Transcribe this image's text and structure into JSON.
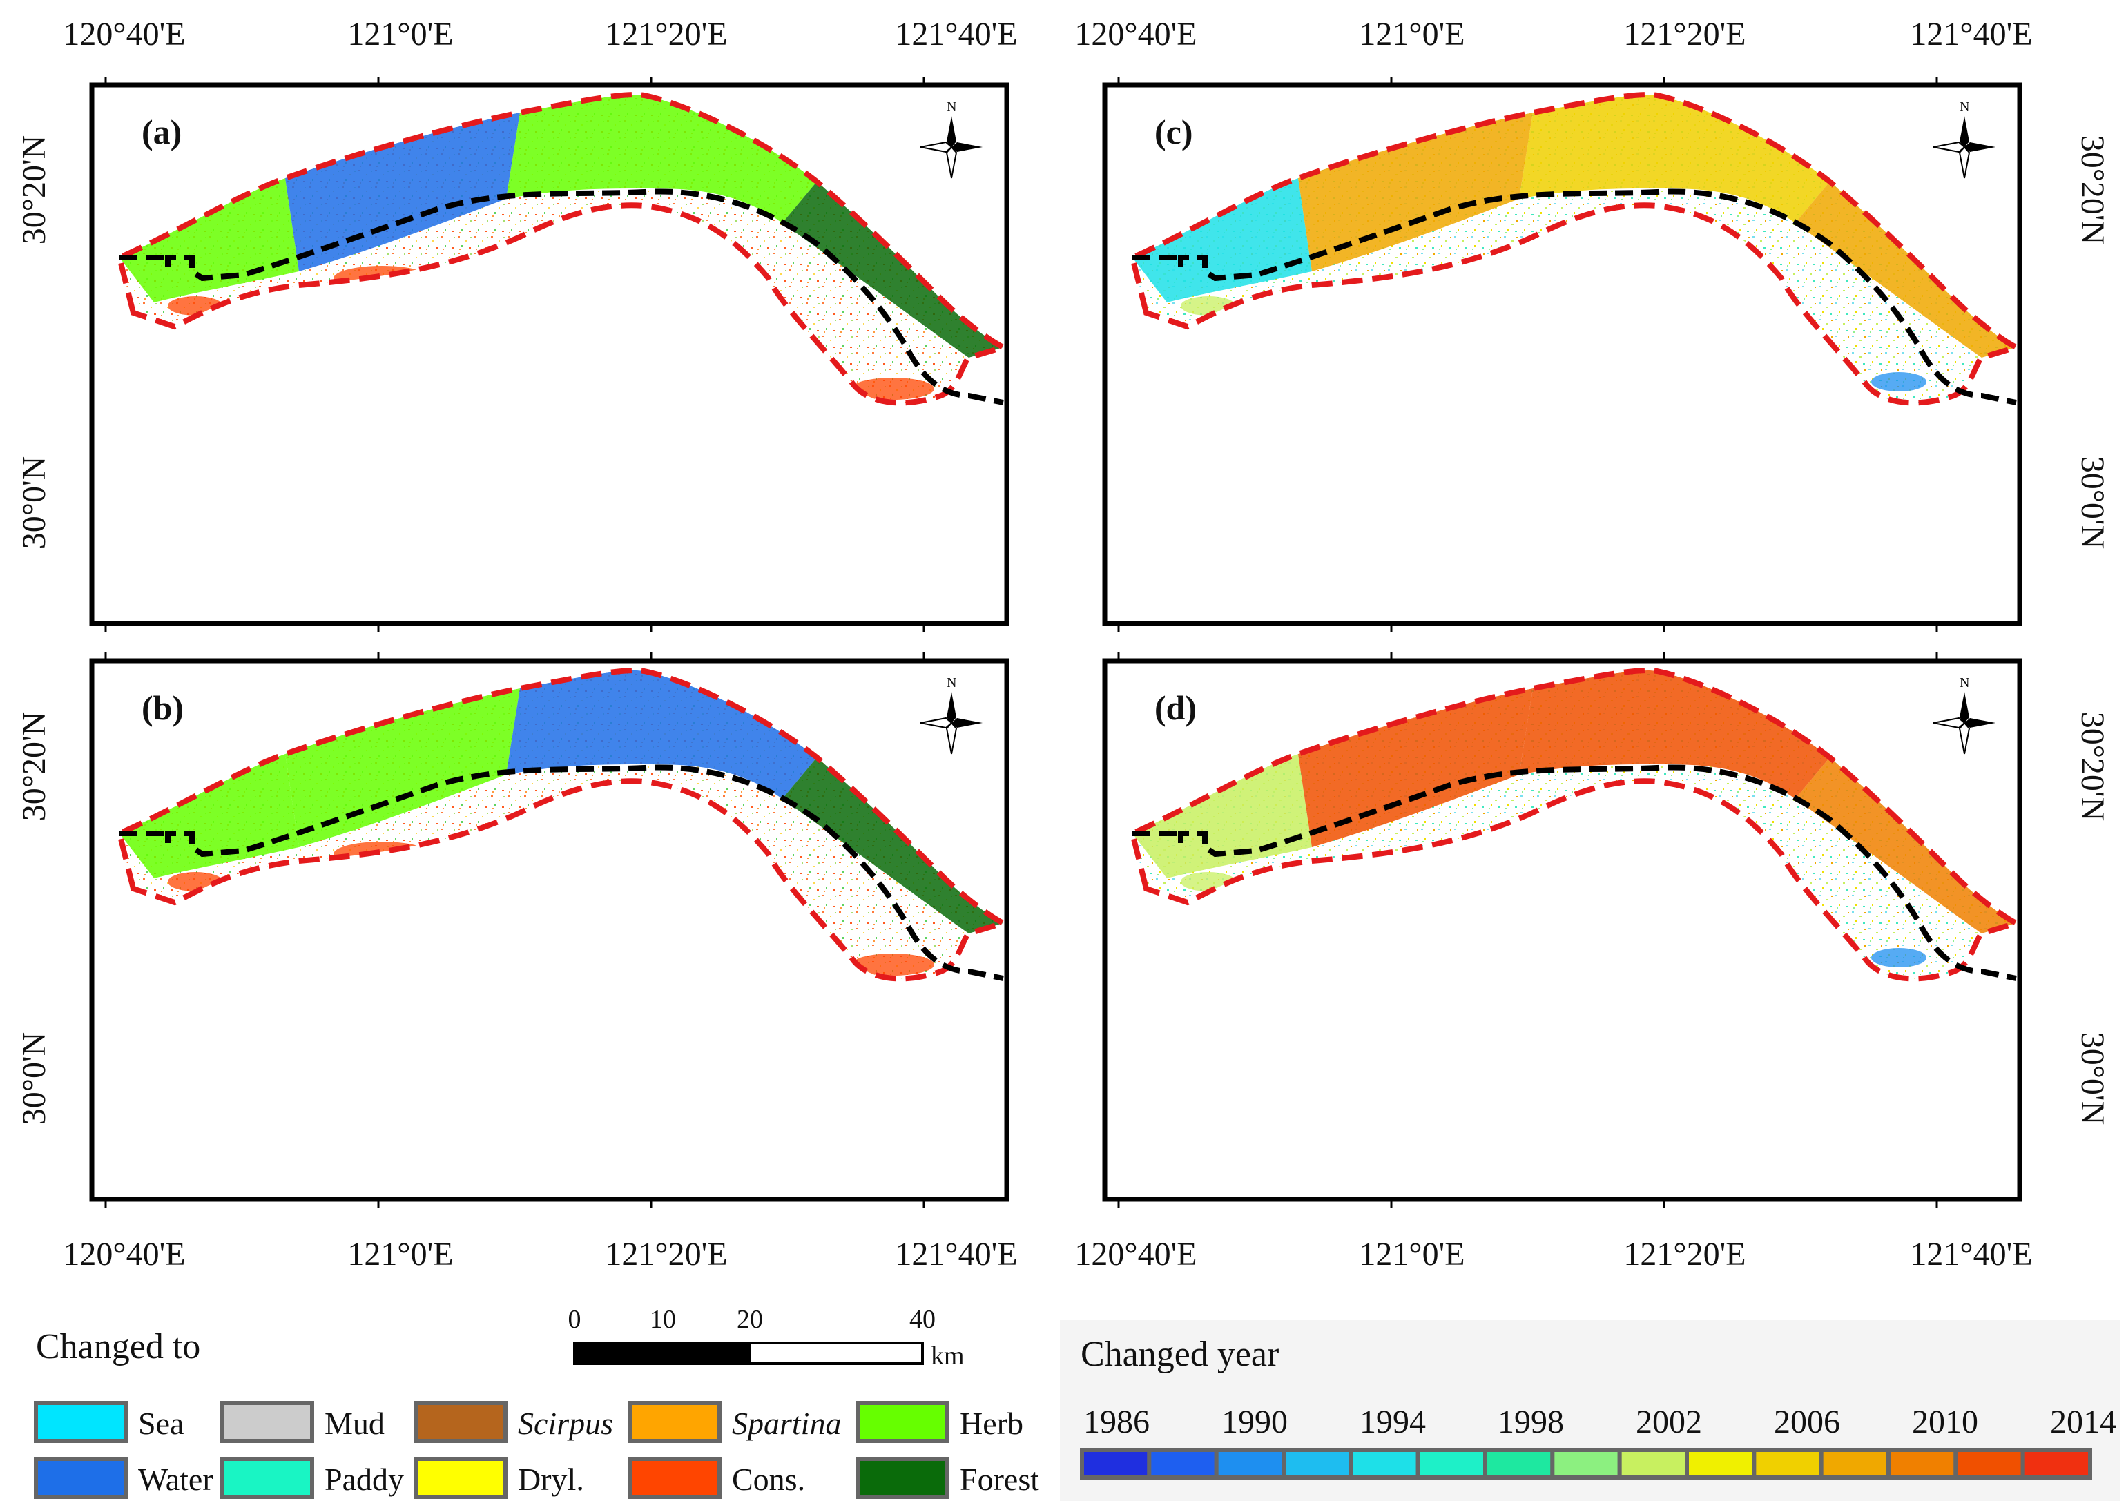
{
  "colors": {
    "boundary_red": "#e41a1c",
    "seawall_black": "#000000",
    "frame": "#000000"
  },
  "top_lon_labels": {
    "left": [
      "120°40'E",
      "121°0'E",
      "121°20'E",
      "121°40'E"
    ],
    "right": [
      "120°40'E",
      "121°0'E",
      "121°20'E",
      "121°40'E"
    ]
  },
  "bottom_lon_labels": {
    "left": [
      "120°40'E",
      "121°0'E",
      "121°20'E",
      "121°40'E"
    ],
    "right": [
      "120°40'E",
      "121°0'E",
      "121°20'E",
      "121°40'E"
    ]
  },
  "lat_labels": {
    "left_top": [
      "30°20'N",
      "30°0'N"
    ],
    "left_bottom": [
      "30°20'N",
      "30°0'N"
    ],
    "right_top": [
      "30°20'N",
      "30°0'N"
    ],
    "right_bottom": [
      "30°20'N",
      "30°0'N"
    ]
  },
  "panels": [
    {
      "id": "a",
      "label": "(a)",
      "mode": "landcover"
    },
    {
      "id": "b",
      "label": "(b)",
      "mode": "landcover"
    },
    {
      "id": "c",
      "label": "(c)",
      "mode": "year"
    },
    {
      "id": "d",
      "label": "(d)",
      "mode": "year"
    }
  ],
  "north_arrow_letter": "N",
  "scale_bar": {
    "ticks": [
      "0",
      "10",
      "20",
      "40"
    ],
    "unit": "km"
  },
  "legend_landcover": {
    "title": "Changed to",
    "items": [
      {
        "name": "Sea",
        "color": "#00e5ff",
        "italic": false
      },
      {
        "name": "Mud",
        "color": "#cccccc",
        "italic": false
      },
      {
        "name": "Scirpus",
        "color": "#b5651d",
        "italic": true
      },
      {
        "name": "Spartina",
        "color": "#ffa500",
        "italic": true
      },
      {
        "name": "Herb",
        "color": "#66ff00",
        "italic": false
      },
      {
        "name": "Water",
        "color": "#1e6fe8",
        "italic": false
      },
      {
        "name": "Paddy",
        "color": "#19f5c4",
        "italic": false
      },
      {
        "name": "Dryl.",
        "color": "#ffff00",
        "italic": false
      },
      {
        "name": "Cons.",
        "color": "#ff4500",
        "italic": false
      },
      {
        "name": "Forest",
        "color": "#0a6b0a",
        "italic": false
      }
    ]
  },
  "legend_year": {
    "title": "Changed year",
    "labels": [
      "1986",
      "1990",
      "1994",
      "1998",
      "2002",
      "2006",
      "2010",
      "2014"
    ],
    "ramp": [
      "#1f2fe0",
      "#1e5ff0",
      "#1e8ff0",
      "#1ebdf0",
      "#1ee0e8",
      "#1ef0c8",
      "#1ee8a0",
      "#8cf080",
      "#c8f060",
      "#f0f000",
      "#f0d000",
      "#f0a800",
      "#f08000",
      "#f05000",
      "#f03010"
    ]
  }
}
